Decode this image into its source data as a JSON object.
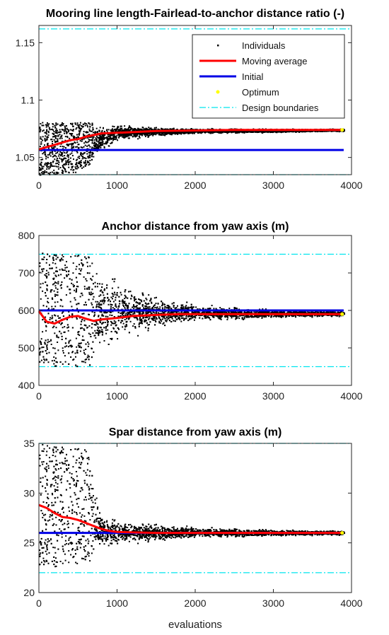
{
  "chart_data": [
    {
      "type": "scatter",
      "title": "Mooring line length-Fairlead-to-anchor distance ratio (-)",
      "xlabel": "",
      "ylabel": "",
      "xlim": [
        0,
        4000
      ],
      "ylim": [
        1.035,
        1.165
      ],
      "xticks": [
        "0",
        "1000",
        "2000",
        "3000",
        "4000"
      ],
      "yticks": [
        {
          "v": 1.05,
          "label": "1.05"
        },
        {
          "v": 1.1,
          "label": "1.1"
        },
        {
          "v": 1.15,
          "label": "1.15"
        }
      ],
      "grid": false,
      "legend": {
        "placement": "top-right",
        "entries": [
          "Individuals",
          "Moving average",
          "Initial",
          "Optimum",
          "Design boundaries"
        ]
      },
      "initial": 1.0565,
      "boundaries": [
        1.035,
        1.162
      ],
      "optimum": {
        "x": 3880,
        "y": 1.074
      },
      "moving_average": {
        "x": [
          0,
          100,
          200,
          300,
          400,
          500,
          600,
          700,
          800,
          1000,
          1200,
          1500,
          2000,
          2500,
          3000,
          3500,
          3900
        ],
        "y": [
          1.057,
          1.059,
          1.061,
          1.063,
          1.065,
          1.066,
          1.068,
          1.0695,
          1.071,
          1.0715,
          1.072,
          1.073,
          1.0735,
          1.074,
          1.074,
          1.074,
          1.074
        ]
      },
      "individuals_envelope": {
        "x": [
          0,
          500,
          1000,
          1500,
          2000,
          3000,
          3900
        ],
        "upper": [
          1.081,
          1.081,
          1.08,
          1.077,
          1.076,
          1.0755,
          1.0755
        ],
        "lower": [
          1.035,
          1.037,
          1.064,
          1.069,
          1.071,
          1.072,
          1.073
        ]
      }
    },
    {
      "type": "scatter",
      "title": "Anchor distance from yaw axis (m)",
      "xlabel": "",
      "ylabel": "",
      "xlim": [
        0,
        4000
      ],
      "ylim": [
        400,
        800
      ],
      "xticks": [
        "0",
        "1000",
        "2000",
        "3000",
        "4000"
      ],
      "yticks": [
        {
          "v": 400,
          "label": "400"
        },
        {
          "v": 500,
          "label": "500"
        },
        {
          "v": 600,
          "label": "600"
        },
        {
          "v": 700,
          "label": "700"
        },
        {
          "v": 800,
          "label": "800"
        }
      ],
      "grid": false,
      "initial": 600,
      "boundaries": [
        450,
        750
      ],
      "optimum": {
        "x": 3880,
        "y": 590
      },
      "moving_average": {
        "x": [
          0,
          100,
          200,
          300,
          400,
          500,
          600,
          700,
          800,
          1000,
          1200,
          1500,
          1800,
          2000,
          2500,
          3000,
          3500,
          3900
        ],
        "y": [
          598,
          570,
          565,
          575,
          583,
          585,
          578,
          572,
          576,
          580,
          585,
          588,
          590,
          590,
          590,
          590,
          590,
          590
        ]
      },
      "individuals_envelope": {
        "x": [
          0,
          500,
          800,
          1000,
          1500,
          2000,
          3000,
          3900
        ],
        "upper": [
          755,
          750,
          740,
          700,
          640,
          620,
          605,
          600
        ],
        "lower": [
          455,
          450,
          460,
          505,
          555,
          570,
          580,
          585
        ]
      }
    },
    {
      "type": "scatter",
      "title": "Spar distance from yaw axis (m)",
      "xlabel": "evaluations",
      "ylabel": "",
      "xlim": [
        0,
        4000
      ],
      "ylim": [
        20,
        35
      ],
      "xticks": [
        "0",
        "1000",
        "2000",
        "3000",
        "4000"
      ],
      "yticks": [
        {
          "v": 20,
          "label": "20"
        },
        {
          "v": 25,
          "label": "25"
        },
        {
          "v": 30,
          "label": "30"
        },
        {
          "v": 35,
          "label": "35"
        }
      ],
      "grid": false,
      "initial": 26,
      "boundaries": [
        22,
        35
      ],
      "optimum": {
        "x": 3880,
        "y": 26
      },
      "moving_average": {
        "x": [
          0,
          100,
          200,
          300,
          400,
          500,
          600,
          700,
          800,
          900,
          1000,
          1200,
          1500,
          2000,
          2500,
          3000,
          3500,
          3900
        ],
        "y": [
          28.8,
          28.5,
          28.0,
          27.6,
          27.5,
          27.3,
          27.0,
          26.7,
          26.4,
          26.2,
          26.1,
          26.05,
          26.0,
          26.0,
          26.0,
          26.0,
          26.0,
          26.0
        ]
      },
      "individuals_envelope": {
        "x": [
          0,
          600,
          800,
          1000,
          1500,
          2000,
          3000,
          3900
        ],
        "upper": [
          35,
          34.5,
          28.5,
          27.5,
          27.0,
          26.7,
          26.4,
          26.3
        ],
        "lower": [
          22.5,
          23.0,
          24.0,
          24.7,
          25.2,
          25.5,
          25.7,
          25.8
        ]
      }
    }
  ],
  "colors": {
    "individuals": "#000000",
    "moving_average": "#ff0000",
    "initial": "#0000e6",
    "optimum": "#ffff00",
    "design_boundaries": "#00e5ee",
    "axes": "#262626"
  }
}
